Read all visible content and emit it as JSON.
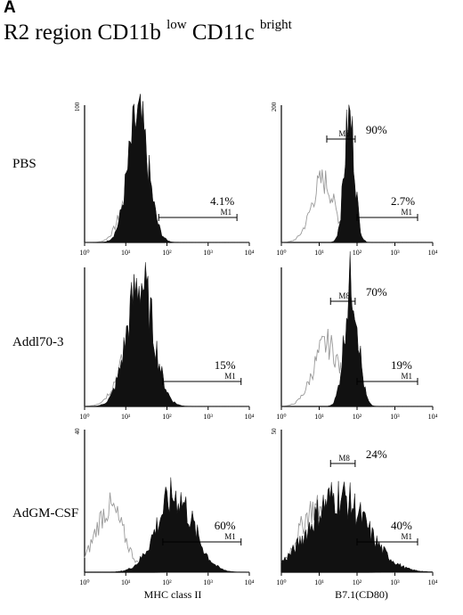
{
  "panel_letter": "A",
  "title": {
    "prefix": "R2 region CD11b",
    "sup1": "low",
    "middle": "CD11c",
    "sup2": "bright"
  },
  "row_labels": [
    "PBS",
    "Addl70-3",
    "AdGM-CSF"
  ],
  "col_labels": [
    "MHC class II",
    "B7.1(CD80)"
  ],
  "chart_data": [
    {
      "type": "histogram",
      "row": "PBS",
      "column": "MHC class II",
      "x_scale": "log",
      "x_ticks": [
        "10⁰",
        "10¹",
        "10²",
        "10³",
        "10⁴"
      ],
      "ymax_label": "100",
      "filled_peak_log": 1.3,
      "filled_width": 0.25,
      "outline_peak_log": 1.2,
      "outline_width": 0.28,
      "gates": [
        {
          "name": "M1",
          "from_log": 1.8,
          "to_log": 3.7,
          "percent": "4.1%"
        }
      ]
    },
    {
      "type": "histogram",
      "row": "PBS",
      "column": "B7.1(CD80)",
      "x_scale": "log",
      "x_ticks": [
        "10⁰",
        "10¹",
        "10²",
        "10³",
        "10⁴"
      ],
      "ymax_label": "200",
      "filled_peak_log": 1.8,
      "filled_width": 0.14,
      "outline_peak_log": 1.1,
      "outline_width": 0.3,
      "gates": [
        {
          "name": "M8",
          "from_log": 1.2,
          "to_log": 1.95,
          "percent": "90%"
        },
        {
          "name": "M1",
          "from_log": 2.0,
          "to_log": 3.6,
          "percent": "2.7%"
        }
      ]
    },
    {
      "type": "histogram",
      "row": "Addl70-3",
      "column": "MHC class II",
      "x_scale": "log",
      "x_ticks": [
        "10⁰",
        "10¹",
        "10²",
        "10³",
        "10⁴"
      ],
      "ymax_label": "",
      "filled_peak_log": 1.35,
      "filled_width": 0.32,
      "outline_peak_log": 1.2,
      "outline_width": 0.35,
      "gates": [
        {
          "name": "M1",
          "from_log": 1.9,
          "to_log": 3.8,
          "percent": "15%"
        }
      ]
    },
    {
      "type": "histogram",
      "row": "Addl70-3",
      "column": "B7.1(CD80)",
      "x_scale": "log",
      "x_ticks": [
        "10⁰",
        "10¹",
        "10²",
        "10³",
        "10⁴"
      ],
      "ymax_label": "",
      "filled_peak_log": 1.85,
      "filled_width": 0.18,
      "outline_peak_log": 1.2,
      "outline_width": 0.35,
      "gates": [
        {
          "name": "M8",
          "from_log": 1.3,
          "to_log": 1.95,
          "percent": "70%"
        },
        {
          "name": "M1",
          "from_log": 2.0,
          "to_log": 3.6,
          "percent": "19%"
        }
      ]
    },
    {
      "type": "histogram",
      "row": "AdGM-CSF",
      "column": "MHC class II",
      "x_scale": "log",
      "x_ticks": [
        "10⁰",
        "10¹",
        "10²",
        "10³",
        "10⁴"
      ],
      "ymax_label": "40",
      "filled_peak_log": 2.2,
      "filled_width": 0.45,
      "outline_peak_log": 0.6,
      "outline_width": 0.35,
      "gates": [
        {
          "name": "M1",
          "from_log": 1.9,
          "to_log": 3.8,
          "percent": "60%"
        }
      ]
    },
    {
      "type": "histogram",
      "row": "AdGM-CSF",
      "column": "B7.1(CD80)",
      "x_scale": "log",
      "x_ticks": [
        "10⁰",
        "10¹",
        "10²",
        "10³",
        "10⁴"
      ],
      "ymax_label": "50",
      "filled_peak_log": 1.5,
      "filled_width": 0.75,
      "outline_peak_log": 0.9,
      "outline_width": 0.45,
      "gates": [
        {
          "name": "M8",
          "from_log": 1.3,
          "to_log": 1.95,
          "percent": "24%"
        },
        {
          "name": "M1",
          "from_log": 2.0,
          "to_log": 3.6,
          "percent": "40%"
        }
      ]
    }
  ]
}
